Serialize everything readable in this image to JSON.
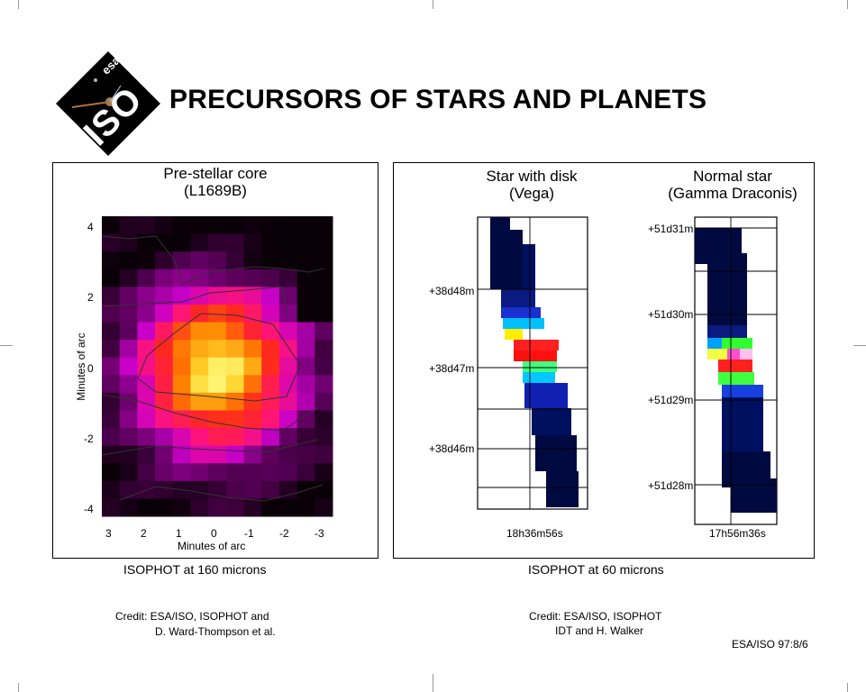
{
  "header": {
    "logo_text": "ISO",
    "logo_agency": "esa",
    "title": "PRECURSORS OF STARS AND PLANETS"
  },
  "left_panel": {
    "title_line1": "Pre-stellar core",
    "title_line2": "(L1689B)",
    "y_axis_label": "Minutes of arc",
    "x_axis_label": "Minutes of arc",
    "y_ticks": [
      "4",
      "2",
      "0",
      "-2",
      "-4"
    ],
    "x_ticks": [
      "3",
      "2",
      "1",
      "0",
      "-1",
      "-2",
      "-3"
    ],
    "caption": "ISOPHOT at 160 microns",
    "credit_line1": "Credit: ESA/ISO, ISOPHOT and",
    "credit_line2": "D. Ward-Thompson et al."
  },
  "right_panel": {
    "vega": {
      "title_line1": "Star with disk",
      "title_line2": "(Vega)",
      "dec_ticks": [
        "+38d48m",
        "+38d47m",
        "+38d46m"
      ],
      "ra_tick": "18h36m56s"
    },
    "gamma": {
      "title_line1": "Normal star",
      "title_line2": "(Gamma Draconis)",
      "dec_ticks": [
        "+51d31m",
        "+51d30m",
        "+51d29m",
        "+51d28m"
      ],
      "ra_tick": "17h56m36s"
    },
    "caption": "ISOPHOT at 60 microns",
    "credit_line1": "Credit: ESA/ISO, ISOPHOT",
    "credit_line2": "IDT and H. Walker"
  },
  "footer": {
    "ref": "ESA/ISO 97:8/6"
  },
  "colors": {
    "heat_low": "#1a0010",
    "heat_mid": "#ff2a2a",
    "heat_high": "#ffff60",
    "star_low": "#000a40",
    "star_peak": "#ff1a1a"
  }
}
